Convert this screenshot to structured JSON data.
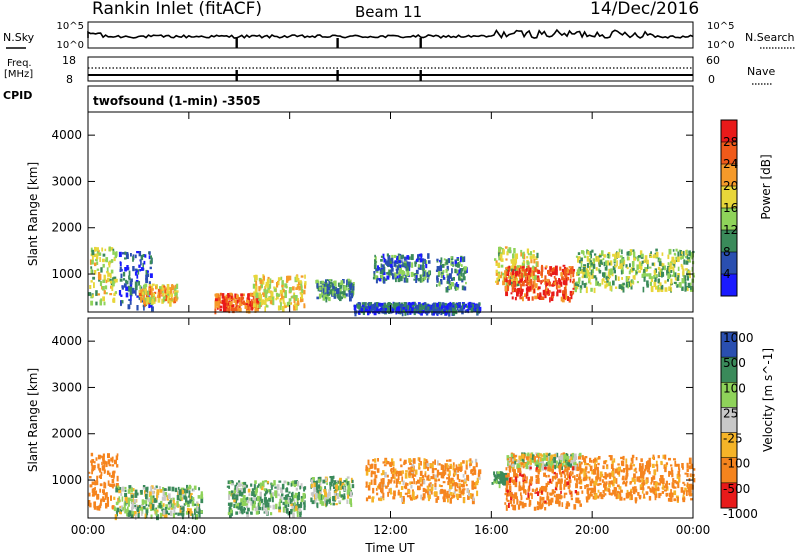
{
  "header": {
    "station": "Rankin Inlet (fitACF)",
    "beam": "Beam 11",
    "date": "14/Dec/2016"
  },
  "nsky_panel": {
    "label": "N.Sky",
    "left_ticks": [
      "10^5",
      "10^0"
    ],
    "right_ticks": [
      "10^5",
      "10^0"
    ],
    "right_label": "N.Search"
  },
  "freq_panel": {
    "label_line1": "Freq.",
    "label_line2": "[MHz]",
    "left_ticks": [
      "18",
      "8"
    ],
    "right_ticks": [
      "60",
      "0"
    ],
    "right_label": "Nave",
    "cpid_label": "CPID",
    "program": "twofsound (1-min) -3505"
  },
  "colors": {
    "power": [
      "#1a1aff",
      "#2a4fb0",
      "#3a8a5a",
      "#8fd35a",
      "#e8d63a",
      "#f59a2a",
      "#f05a1a",
      "#e81a1a"
    ],
    "velocity": [
      "#2a4fb0",
      "#3a8a5a",
      "#8fd35a",
      "#c8c8c8",
      "#f5b428",
      "#f5841e",
      "#e81a1a"
    ]
  },
  "chart_data": [
    {
      "type": "heatmap",
      "name": "power",
      "ylabel": "Slant Range [km]",
      "yticks": [
        "4000",
        "3000",
        "2000",
        "1000"
      ],
      "ylim": [
        180,
        4500
      ],
      "xlim_hours": [
        0,
        24
      ],
      "colorbar_label": "Power [dB]",
      "colorbar_ticks": [
        "28",
        "24",
        "20",
        "16",
        "12",
        "8",
        "4"
      ],
      "colorbar_range": [
        0,
        32
      ],
      "echo_regions": [
        {
          "t": [
            0.0,
            1.1
          ],
          "r": [
            400,
            1600
          ],
          "p": 16
        },
        {
          "t": [
            1.2,
            2.5
          ],
          "r": [
            300,
            1500
          ],
          "p": 6
        },
        {
          "t": [
            2.0,
            3.5
          ],
          "r": [
            400,
            800
          ],
          "p": 20
        },
        {
          "t": [
            5.0,
            6.8
          ],
          "r": [
            250,
            600
          ],
          "p": 26
        },
        {
          "t": [
            6.5,
            8.6
          ],
          "r": [
            300,
            1000
          ],
          "p": 18
        },
        {
          "t": [
            9.0,
            10.5
          ],
          "r": [
            500,
            900
          ],
          "p": 10
        },
        {
          "t": [
            11.3,
            13.5
          ],
          "r": [
            900,
            1450
          ],
          "p": 8
        },
        {
          "t": [
            13.8,
            15.0
          ],
          "r": [
            700,
            1400
          ],
          "p": 9
        },
        {
          "t": [
            16.1,
            17.8
          ],
          "r": [
            800,
            1600
          ],
          "p": 17
        },
        {
          "t": [
            16.5,
            19.3
          ],
          "r": [
            500,
            1200
          ],
          "p": 28
        },
        {
          "t": [
            19.3,
            24.0
          ],
          "r": [
            700,
            1550
          ],
          "p": 14
        },
        {
          "t": [
            10.5,
            15.5
          ],
          "r": [
            200,
            400
          ],
          "p": 6
        }
      ]
    },
    {
      "type": "heatmap",
      "name": "velocity",
      "ylabel": "Slant Range [km]",
      "yticks": [
        "4000",
        "3000",
        "2000",
        "1000"
      ],
      "ylim": [
        180,
        4500
      ],
      "xlim_hours": [
        0,
        24
      ],
      "xticks": [
        "00:00",
        "04:00",
        "08:00",
        "12:00",
        "16:00",
        "20:00",
        "00:00"
      ],
      "xlabel": "Time UT",
      "colorbar_label": "Velocity [m s^-1]",
      "colorbar_ticks": [
        "1000",
        "500",
        "100",
        "25",
        "-25",
        "-100",
        "-500",
        "-1000"
      ],
      "echo_regions": [
        {
          "t": [
            0.0,
            1.2
          ],
          "r": [
            400,
            1600
          ],
          "v": -300
        },
        {
          "t": [
            1.0,
            4.5
          ],
          "r": [
            250,
            900
          ],
          "v": 60
        },
        {
          "t": [
            5.5,
            8.6
          ],
          "r": [
            300,
            1000
          ],
          "v": 120
        },
        {
          "t": [
            8.8,
            10.5
          ],
          "r": [
            500,
            1100
          ],
          "v": 80
        },
        {
          "t": [
            11.0,
            15.5
          ],
          "r": [
            600,
            1500
          ],
          "v": -150
        },
        {
          "t": [
            16.0,
            16.6
          ],
          "r": [
            950,
            1200
          ],
          "v": 200
        },
        {
          "t": [
            16.6,
            19.5
          ],
          "r": [
            1300,
            1600
          ],
          "v": 0
        },
        {
          "t": [
            16.5,
            19.5
          ],
          "r": [
            400,
            1300
          ],
          "v": -400
        },
        {
          "t": [
            19.5,
            24.0
          ],
          "r": [
            600,
            1550
          ],
          "v": -200
        }
      ]
    }
  ]
}
